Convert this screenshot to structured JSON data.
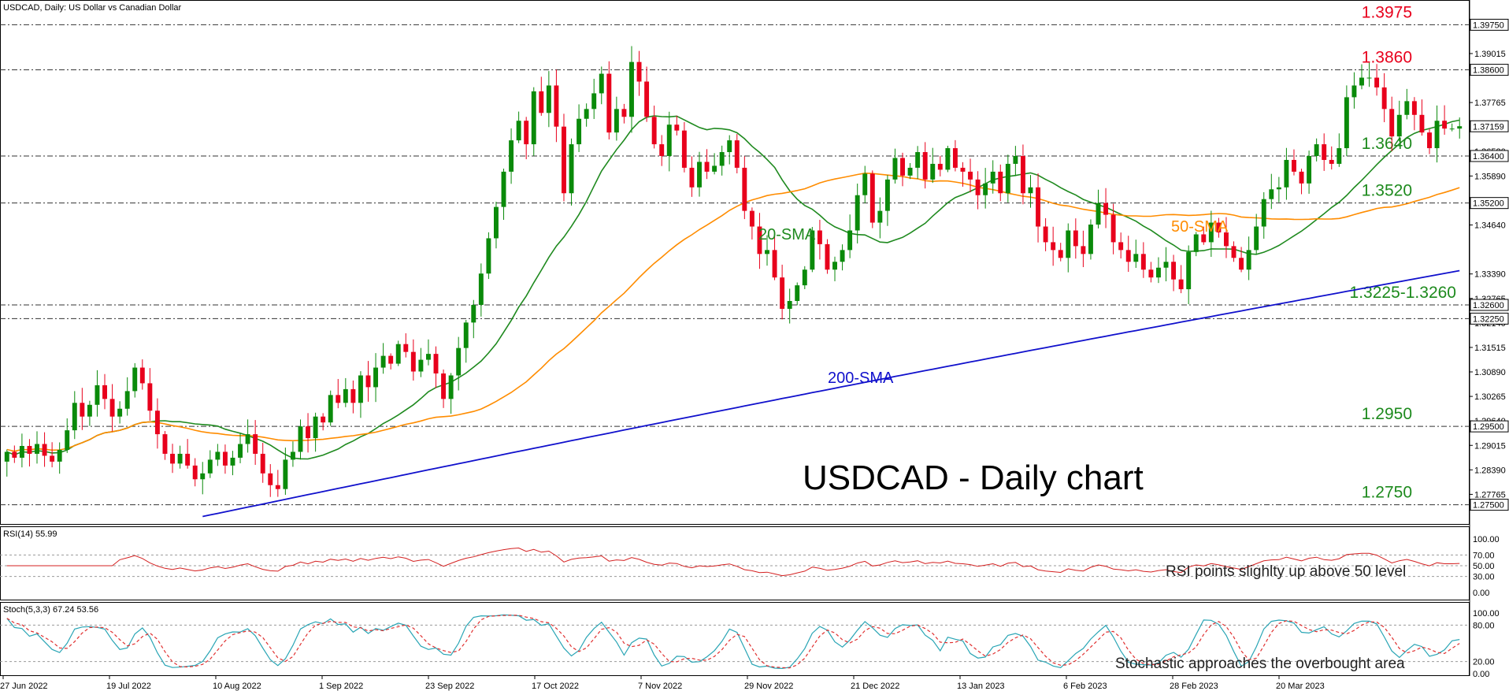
{
  "header": {
    "main": "USDCAD, Daily:  US Dollar vs Canadian Dollar",
    "rsi": "RSI(14) 55.99",
    "stoch": "Stoch(5,3,3) 67.24 53.56"
  },
  "title": "USDCAD - Daily chart",
  "colors": {
    "bull": "#0a8a0a",
    "bear": "#e8001c",
    "sma20": "#1f8a1f",
    "sma50": "#ff8c00",
    "sma200": "#1010cc",
    "rsi": "#d42020",
    "stoch_k": "#29a5b5",
    "stoch_d": "#e03030",
    "resistance": "#e8001c",
    "support": "#1d8a1d"
  },
  "annotations": {
    "sma20": "20-SMA",
    "sma50": "50-SMA",
    "sma200": "200-SMA",
    "rsi_note": "RSI points slighlty up above 50 level",
    "stoch_note": "Stochastic approaches the overbought area"
  },
  "levels": [
    {
      "value": 1.3975,
      "label": "1.3975",
      "style": "resistance",
      "axis": "1.39750"
    },
    {
      "value": 1.386,
      "label": "1.3860",
      "style": "resistance",
      "axis": "1.38600"
    },
    {
      "value": 1.364,
      "label": "1.3640",
      "style": "support",
      "axis": "1.36400"
    },
    {
      "value": 1.352,
      "label": "1.3520",
      "style": "support",
      "axis": "1.35200"
    },
    {
      "value": 1.326,
      "label": "1.3225-1.3260",
      "style": "support",
      "axis": "1.32600"
    },
    {
      "value": 1.3225,
      "label": "",
      "style": "support",
      "axis": "1.32250"
    },
    {
      "value": 1.295,
      "label": "1.2950",
      "style": "support",
      "axis": "1.29500"
    },
    {
      "value": 1.275,
      "label": "1.2750",
      "style": "support",
      "axis": "1.27500"
    }
  ],
  "price_axis": {
    "ticks": [
      "1.39015",
      "1.37765",
      "1.36520",
      "1.35890",
      "1.34640",
      "1.33390",
      "1.32765",
      "1.32140",
      "1.31515",
      "1.30890",
      "1.30265",
      "1.29640",
      "1.29015",
      "1.28390",
      "1.27765"
    ],
    "current": "1.37159"
  },
  "rsi_axis": [
    "100.00",
    "70.00",
    "50.00",
    "30.00",
    "0.00"
  ],
  "stoch_axis": [
    "100.00",
    "80.00",
    "20.00",
    "0.00"
  ],
  "date_labels": [
    "27 Jun 2022",
    "19 Jul 2022",
    "10 Aug 2022",
    "1 Sep 2022",
    "23 Sep 2022",
    "17 Oct 2022",
    "7 Nov 2022",
    "29 Nov 2022",
    "21 Dec 2022",
    "13 Jan 2023",
    "6 Feb 2023",
    "28 Feb 2023",
    "20 Mar 2023"
  ],
  "chart_data": {
    "type": "candlestick",
    "symbol": "USDCAD",
    "timeframe": "Daily",
    "ylim": [
      1.2715,
      1.401
    ],
    "closes": [
      1.2885,
      1.287,
      1.29,
      1.288,
      1.2905,
      1.2875,
      1.286,
      1.289,
      1.294,
      1.301,
      1.2975,
      1.3005,
      1.3055,
      1.302,
      1.2975,
      1.2995,
      1.304,
      1.31,
      1.306,
      1.299,
      1.293,
      1.288,
      1.2855,
      1.288,
      1.285,
      1.2815,
      1.283,
      1.2865,
      1.2885,
      1.285,
      1.287,
      1.2905,
      1.293,
      1.288,
      1.283,
      1.28,
      1.279,
      1.2865,
      1.2885,
      1.295,
      1.292,
      1.2975,
      1.296,
      1.303,
      1.301,
      1.3045,
      1.301,
      1.308,
      1.305,
      1.31,
      1.313,
      1.311,
      1.316,
      1.314,
      1.309,
      1.312,
      1.3135,
      1.3085,
      1.302,
      1.308,
      1.315,
      1.3215,
      1.326,
      1.334,
      1.343,
      1.351,
      1.36,
      1.368,
      1.373,
      1.367,
      1.3805,
      1.375,
      1.382,
      1.3715,
      1.3545,
      1.367,
      1.3735,
      1.376,
      1.38,
      1.385,
      1.37,
      1.376,
      1.374,
      1.388,
      1.383,
      1.374,
      1.367,
      1.364,
      1.372,
      1.3705,
      1.361,
      1.356,
      1.3625,
      1.36,
      1.3615,
      1.365,
      1.368,
      1.361,
      1.35,
      1.346,
      1.339,
      1.34,
      1.333,
      1.325,
      1.327,
      1.331,
      1.335,
      1.345,
      1.3415,
      1.335,
      1.337,
      1.34,
      1.345,
      1.354,
      1.3595,
      1.347,
      1.35,
      1.358,
      1.3635,
      1.359,
      1.361,
      1.365,
      1.358,
      1.362,
      1.3605,
      1.366,
      1.361,
      1.36,
      1.358,
      1.354,
      1.357,
      1.36,
      1.3545,
      1.362,
      1.364,
      1.3545,
      1.356,
      1.346,
      1.342,
      1.34,
      1.338,
      1.345,
      1.341,
      1.339,
      1.3465,
      1.352,
      1.349,
      1.342,
      1.34,
      1.337,
      1.339,
      1.335,
      1.333,
      1.3355,
      1.337,
      1.3325,
      1.33,
      1.3395,
      1.344,
      1.342,
      1.347,
      1.3445,
      1.341,
      1.338,
      1.335,
      1.34,
      1.346,
      1.353,
      1.3555,
      1.356,
      1.363,
      1.36,
      1.357,
      1.364,
      1.367,
      1.363,
      1.362,
      1.366,
      1.379,
      1.382,
      1.384,
      1.384,
      1.3815,
      1.376,
      1.369,
      1.3745,
      1.378,
      1.3745,
      1.37,
      1.366,
      1.373,
      1.371,
      1.371,
      1.3716
    ]
  }
}
